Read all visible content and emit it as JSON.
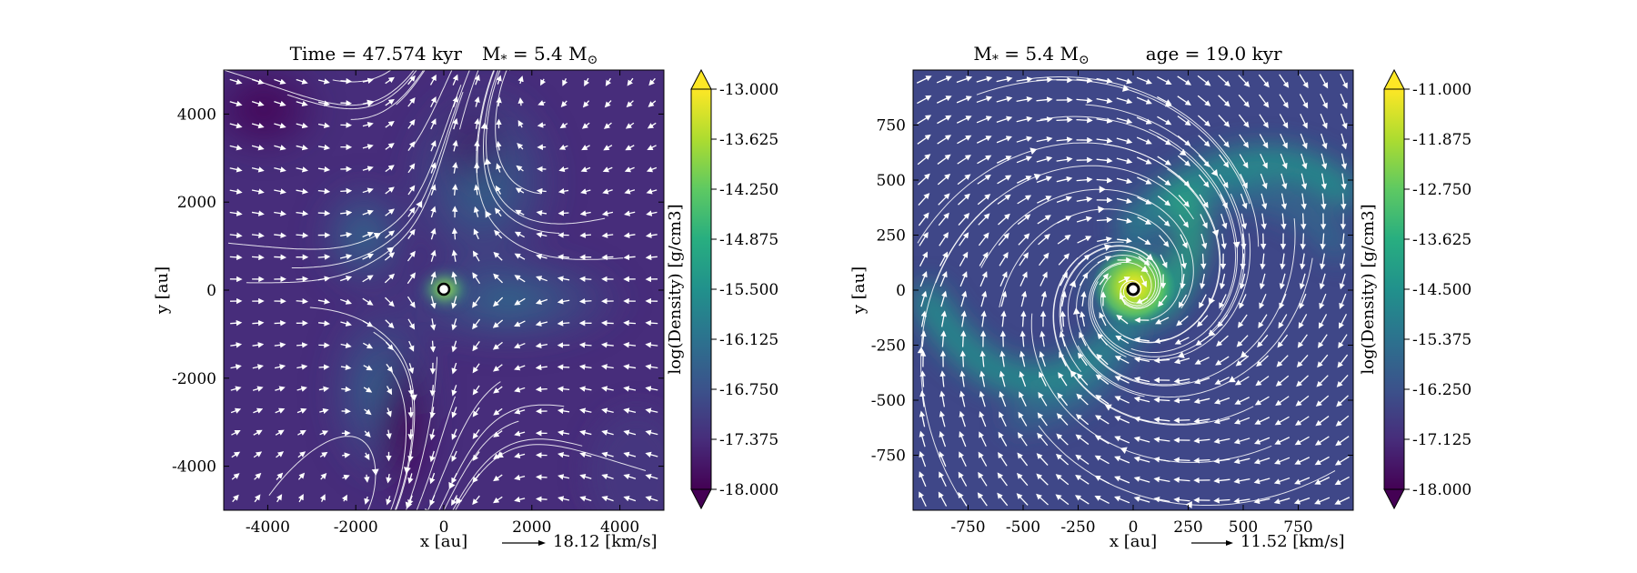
{
  "chart_data": [
    {
      "type": "heatmap",
      "title": "Time = 47.574 kyr    M$_*$ = 5.4 M$_\\odot$",
      "title_parts": {
        "time": "Time = 47.574 kyr",
        "mass_base": "M",
        "mass_sub": "*",
        "mass_eq": " = 5.4 M",
        "mass_unit_sub": "⊙"
      },
      "xlabel": "x [au]",
      "ylabel": "y [au]",
      "xlim": [
        -5000,
        5000
      ],
      "ylim": [
        -5000,
        5000
      ],
      "xticks": [
        -4000,
        -2000,
        0,
        2000,
        4000
      ],
      "yticks": [
        -4000,
        -2000,
        0,
        2000,
        4000
      ],
      "xtick_labels": [
        "-4000",
        "-2000",
        "0",
        "2000",
        "4000"
      ],
      "ytick_labels": [
        "-4000",
        "-2000",
        "0",
        "2000",
        "4000"
      ],
      "colorbar": {
        "label": "log(Density) [g/cm3]",
        "min": -18.0,
        "max": -13.0,
        "ticks": [
          "-13.000",
          "-13.625",
          "-14.250",
          "-14.875",
          "-15.500",
          "-16.125",
          "-16.750",
          "-17.375",
          "-18.000"
        ],
        "extend": "both",
        "colormap": "viridis"
      },
      "velocity_key": {
        "value": 18.12,
        "label": "18.12 [km/s]"
      },
      "overlays": [
        "velocity arrows",
        "streamlines"
      ],
      "sink": {
        "x": 0,
        "y": 0
      }
    },
    {
      "type": "heatmap",
      "title": "M$_*$ = 5.4 M$_\\odot$      age = 19.0 kyr",
      "title_parts": {
        "mass_base": "M",
        "mass_sub": "*",
        "mass_eq": " = 5.4 M",
        "mass_unit_sub": "⊙",
        "age": "age = 19.0 kyr"
      },
      "xlabel": "x [au]",
      "ylabel": "y [au]",
      "xlim": [
        -1000,
        1000
      ],
      "ylim": [
        -1000,
        1000
      ],
      "xticks": [
        -750,
        -500,
        -250,
        0,
        250,
        500,
        750
      ],
      "yticks": [
        -750,
        -500,
        -250,
        0,
        250,
        500,
        750
      ],
      "xtick_labels": [
        "-750",
        "-500",
        "-250",
        "0",
        "250",
        "500",
        "750"
      ],
      "ytick_labels": [
        "-750",
        "-500",
        "-250",
        "0",
        "250",
        "500",
        "750"
      ],
      "colorbar": {
        "label": "log(Density) [g/cm3]",
        "min": -18.0,
        "max": -11.0,
        "ticks": [
          "-11.000",
          "-11.875",
          "-12.750",
          "-13.625",
          "-14.500",
          "-15.375",
          "-16.250",
          "-17.125",
          "-18.000"
        ],
        "extend": "both",
        "colormap": "viridis"
      },
      "velocity_key": {
        "value": 11.52,
        "label": "11.52 [km/s]"
      },
      "overlays": [
        "velocity arrows",
        "streamlines"
      ],
      "sink": {
        "x": 0,
        "y": 0
      }
    }
  ]
}
